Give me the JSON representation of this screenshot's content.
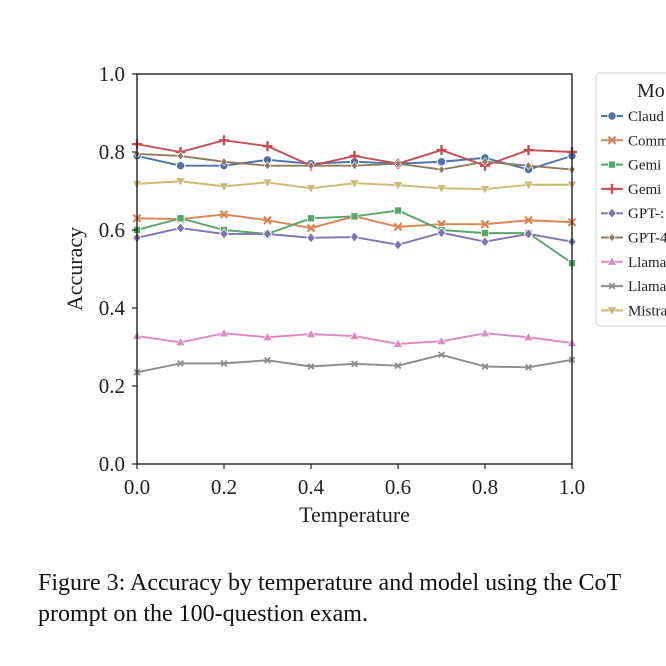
{
  "caption": "Figure 3: Accuracy by temperature and model using the CoT prompt on the 100-question exam.",
  "chart_data": {
    "type": "line",
    "title": "",
    "xlabel": "Temperature",
    "ylabel": "Accuracy",
    "xlim": [
      0.0,
      1.0
    ],
    "ylim": [
      0.0,
      1.0
    ],
    "xticks": [
      "0.0",
      "0.2",
      "0.4",
      "0.6",
      "0.8",
      "1.0"
    ],
    "yticks": [
      "0.0",
      "0.2",
      "0.4",
      "0.6",
      "0.8",
      "1.0"
    ],
    "legend_title": "Mo",
    "legend_position": "right, outside plot (clipped)",
    "x": [
      0.0,
      0.1,
      0.2,
      0.3,
      0.4,
      0.5,
      0.6,
      0.7,
      0.8,
      0.9,
      1.0
    ],
    "series": [
      {
        "name": "Claud",
        "color": "#4c72b0",
        "marker": "circle",
        "values": [
          0.79,
          0.765,
          0.765,
          0.78,
          0.77,
          0.775,
          0.77,
          0.775,
          0.785,
          0.755,
          0.79
        ]
      },
      {
        "name": "Comm",
        "color": "#dd8452",
        "marker": "x",
        "values": [
          0.63,
          0.628,
          0.64,
          0.625,
          0.605,
          0.635,
          0.608,
          0.615,
          0.615,
          0.625,
          0.62
        ]
      },
      {
        "name": "Gemi",
        "color": "#55a868",
        "marker": "square",
        "values": [
          0.6,
          0.63,
          0.6,
          0.59,
          0.63,
          0.635,
          0.65,
          0.6,
          0.592,
          0.592,
          0.515
        ]
      },
      {
        "name": "Gemi",
        "color": "#c44e52",
        "marker": "plus",
        "values": [
          0.82,
          0.8,
          0.83,
          0.815,
          0.765,
          0.79,
          0.77,
          0.805,
          0.765,
          0.805,
          0.8
        ]
      },
      {
        "name": "GPT-:",
        "color": "#8172b3",
        "marker": "diamond",
        "values": [
          0.58,
          0.605,
          0.59,
          0.59,
          0.58,
          0.582,
          0.562,
          0.593,
          0.57,
          0.59,
          0.57
        ]
      },
      {
        "name": "GPT-4",
        "color": "#937860",
        "marker": "diamond-small",
        "values": [
          0.795,
          0.79,
          0.775,
          0.765,
          0.765,
          0.765,
          0.77,
          0.755,
          0.775,
          0.765,
          0.755
        ]
      },
      {
        "name": "Llama",
        "color": "#da8bc3",
        "marker": "triangle-up",
        "values": [
          0.328,
          0.312,
          0.335,
          0.325,
          0.333,
          0.328,
          0.308,
          0.315,
          0.335,
          0.325,
          0.31
        ]
      },
      {
        "name": "Llama",
        "color": "#8c8c8c",
        "marker": "x-small",
        "values": [
          0.235,
          0.258,
          0.258,
          0.266,
          0.25,
          0.257,
          0.252,
          0.28,
          0.25,
          0.248,
          0.267
        ]
      },
      {
        "name": "Mistra",
        "color": "#ccb974",
        "marker": "triangle-down",
        "values": [
          0.718,
          0.725,
          0.712,
          0.722,
          0.707,
          0.72,
          0.715,
          0.707,
          0.705,
          0.716,
          0.716
        ]
      }
    ]
  }
}
